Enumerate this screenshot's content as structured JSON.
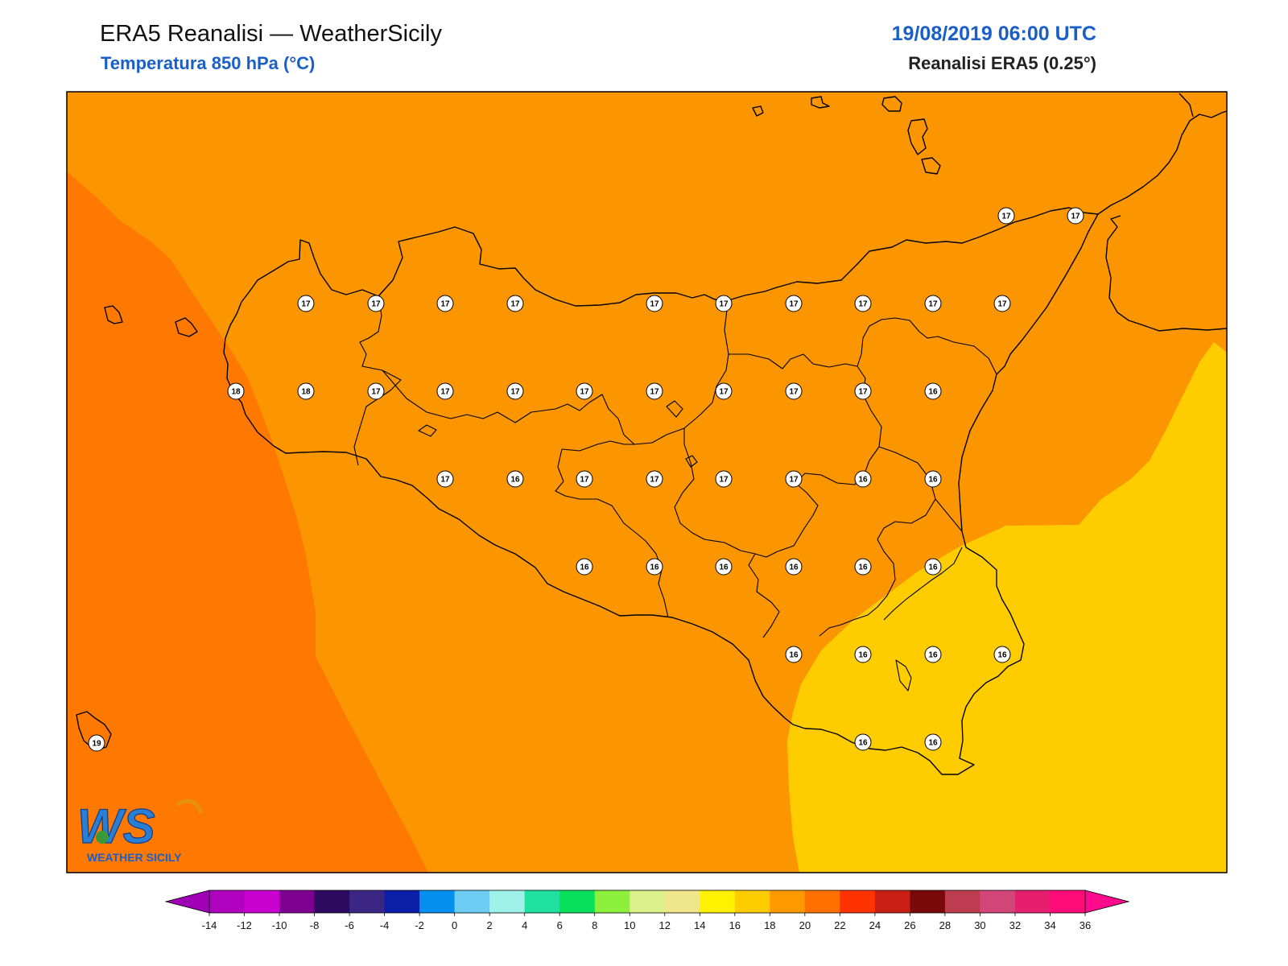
{
  "header": {
    "title": "ERA5 Reanalisi — WeatherSicily",
    "subtitle": "Temperatura 850 hPa (°C)",
    "datetime": "19/08/2019 06:00 UTC",
    "source": "Reanalisi ERA5 (0.25°)"
  },
  "logo": {
    "initials": "WS",
    "text": "WEATHER SICILY"
  },
  "colorbar": {
    "ticks": [
      "-14",
      "-12",
      "-10",
      "-8",
      "-6",
      "-4",
      "-2",
      "0",
      "2",
      "4",
      "6",
      "8",
      "10",
      "12",
      "14",
      "16",
      "18",
      "20",
      "22",
      "24",
      "26",
      "28",
      "30",
      "32",
      "34",
      "36"
    ],
    "colors": [
      "#b000c0",
      "#c800d0",
      "#7e0090",
      "#2e0a5e",
      "#3b2585",
      "#0a1ea8",
      "#0590f0",
      "#6ecdf5",
      "#9ef2ea",
      "#20e0a0",
      "#06e05a",
      "#8cf03c",
      "#dcf08c",
      "#f0e68c",
      "#fff200",
      "#ffcc00",
      "#ff9900",
      "#ff7000",
      "#ff3300",
      "#c81e14",
      "#7a0a0a",
      "#be3c50",
      "#d24678",
      "#e61e6e",
      "#ff0a78"
    ],
    "left_arrow_color": "#a000b4",
    "right_arrow_color": "#ff0a8c"
  },
  "fields": {
    "t16_color": "#fb9600",
    "t18_color": "#ff7800",
    "t14_color": "#ffcc00",
    "land_color": "#fb9600"
  },
  "stations": [
    {
      "row": 1,
      "values": [
        "17",
        "17"
      ]
    },
    {
      "row": 2,
      "values": [
        "17",
        "17",
        "17",
        "17",
        "17",
        "17",
        "17",
        "17",
        "17",
        "17"
      ]
    },
    {
      "row": 3,
      "values": [
        "18",
        "18",
        "17",
        "17",
        "17",
        "17",
        "17",
        "17",
        "17",
        "17",
        "16"
      ]
    },
    {
      "row": 4,
      "values": [
        "17",
        "16",
        "17",
        "17",
        "17",
        "17",
        "16",
        "16"
      ]
    },
    {
      "row": 5,
      "values": [
        "16",
        "16",
        "16",
        "16",
        "16",
        "16"
      ]
    },
    {
      "row": 6,
      "values": [
        "16",
        "16",
        "16",
        "16"
      ]
    },
    {
      "row": 7,
      "values": [
        "19",
        "16",
        "16"
      ]
    }
  ]
}
